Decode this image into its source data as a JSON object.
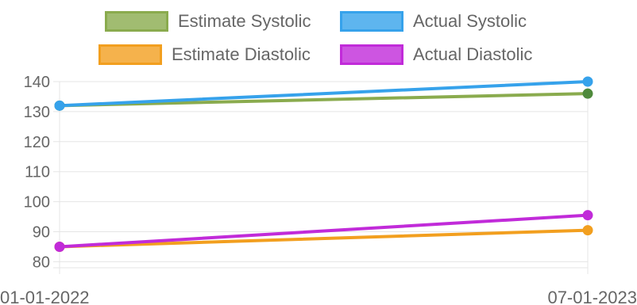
{
  "chart_data": {
    "type": "line",
    "x": [
      "01-01-2022",
      "07-01-2023"
    ],
    "series": [
      {
        "name": "Estimate Systolic",
        "values": [
          132,
          136
        ],
        "color": "#8aab4e",
        "point_color": "#4f8a3c"
      },
      {
        "name": "Actual Systolic",
        "values": [
          132,
          140
        ],
        "color": "#36a2eb",
        "point_color": "#36a2eb"
      },
      {
        "name": "Estimate Diastolic",
        "values": [
          85,
          90.5
        ],
        "color": "#f29f1f",
        "point_color": "#f29f1f"
      },
      {
        "name": "Actual Diastolic",
        "values": [
          85,
          95.5
        ],
        "color": "#c12bd9",
        "point_color": "#c12bd9"
      }
    ],
    "yticks": [
      80,
      90,
      100,
      110,
      120,
      130,
      140
    ],
    "ylim": [
      78,
      140
    ],
    "grid": true,
    "legend_position": "top"
  }
}
